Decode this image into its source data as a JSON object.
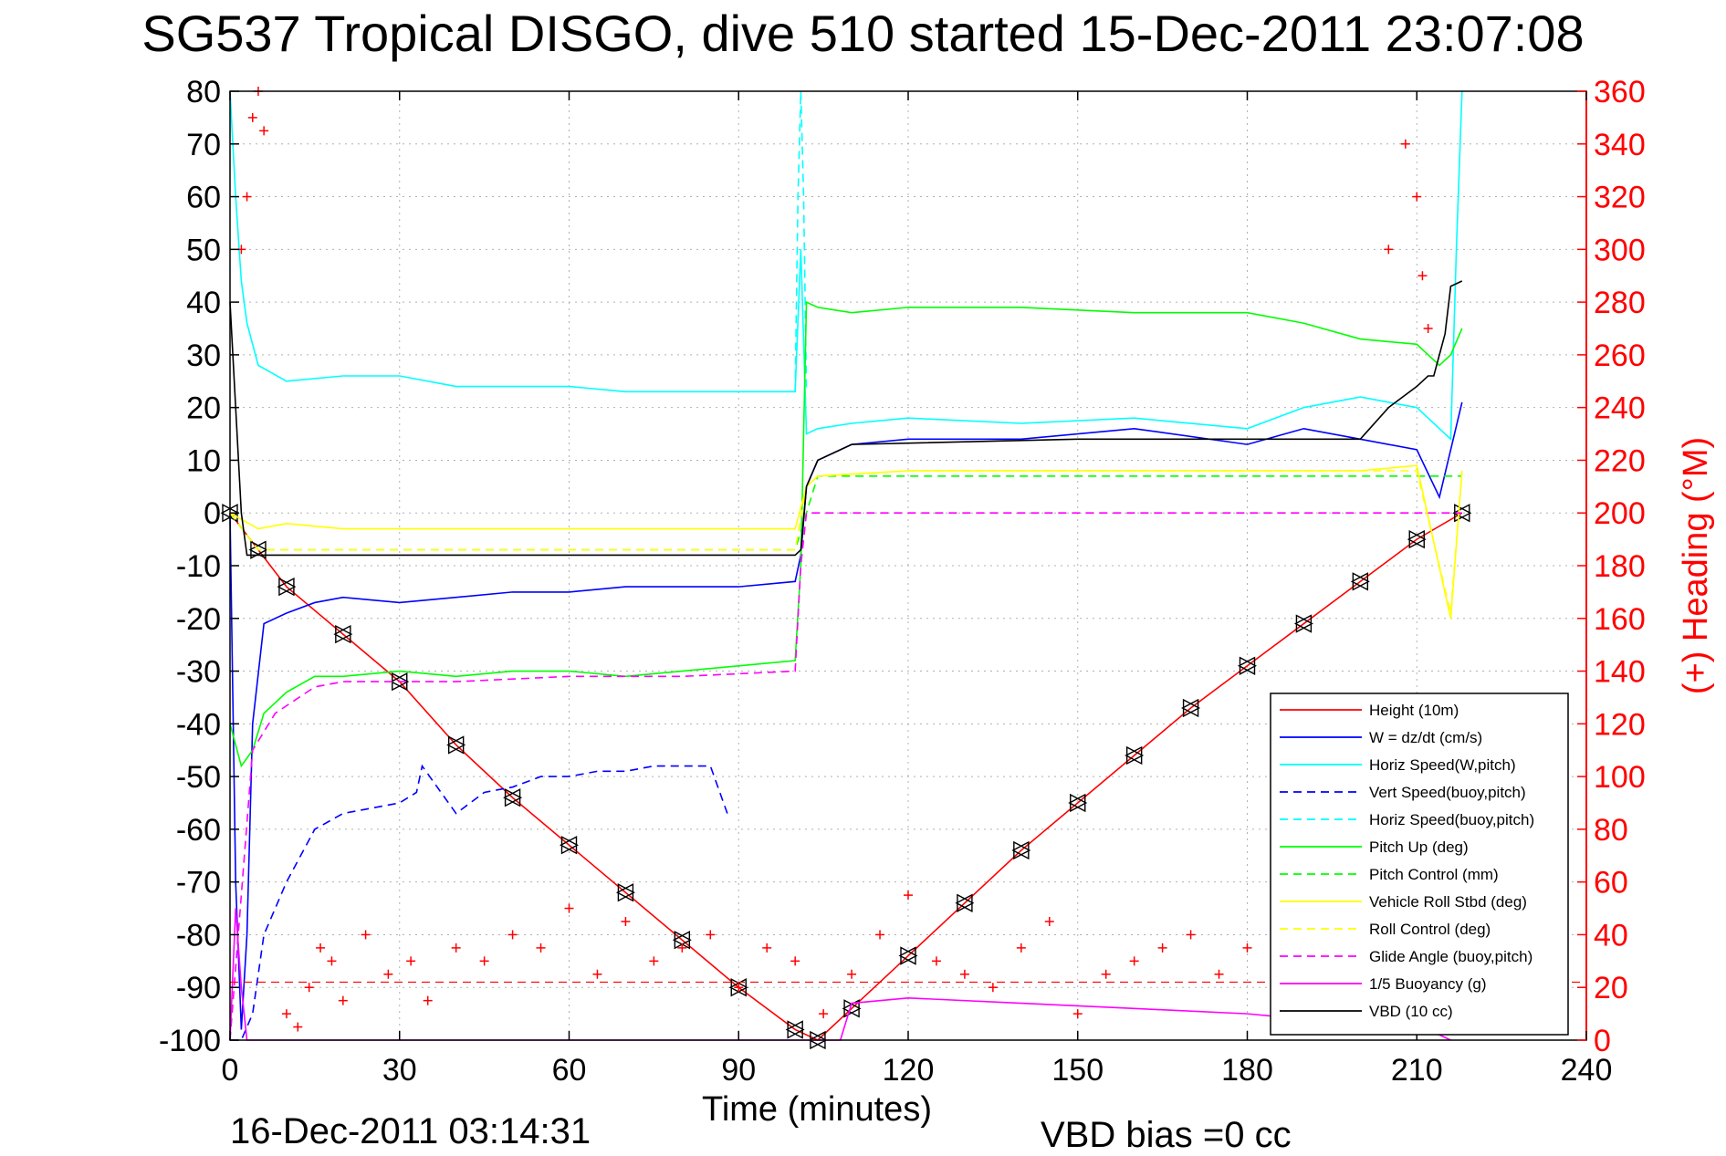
{
  "page": {
    "title": "SG537 Tropical DISGO, dive 510 started 15-Dec-2011 23:07:08",
    "footer_date": "16-Dec-2011 03:14:31",
    "footer_bias": "VBD bias =0 cc"
  },
  "chart_data": {
    "type": "line",
    "title": "SG537 Tropical DISGO, dive 510 started 15-Dec-2011 23:07:08",
    "xlabel": "Time (minutes)",
    "ylabel": "",
    "y2label": "(+) Heading (°M)",
    "xlim": [
      0,
      240
    ],
    "ylim": [
      -100,
      80
    ],
    "y2lim": [
      0,
      360
    ],
    "xticks": [
      0,
      30,
      60,
      90,
      120,
      150,
      180,
      210,
      240
    ],
    "yticks": [
      80,
      70,
      60,
      50,
      40,
      30,
      20,
      10,
      0,
      -10,
      -20,
      -30,
      -40,
      -50,
      -60,
      -70,
      -80,
      -90,
      -100
    ],
    "y2ticks": [
      360,
      340,
      320,
      300,
      280,
      260,
      240,
      220,
      200,
      180,
      160,
      140,
      120,
      100,
      80,
      60,
      40,
      20,
      0
    ],
    "grid": true,
    "legend_position": "bottom-right",
    "colors": {
      "red": "#ff0000",
      "blue": "#0000ff",
      "cyan": "#00ffff",
      "green": "#00ff00",
      "yellow": "#ffff00",
      "magenta": "#ff00ff",
      "black": "#000000",
      "heading": "#ff0000"
    },
    "series": [
      {
        "name": "Height (10m)",
        "color": "#ff0000",
        "style": "solid",
        "marker": "triangle",
        "x": [
          0,
          5,
          10,
          20,
          30,
          40,
          50,
          60,
          70,
          80,
          90,
          100,
          104,
          110,
          120,
          130,
          140,
          150,
          160,
          170,
          180,
          190,
          200,
          210,
          218
        ],
        "y": [
          0,
          -7,
          -14,
          -23,
          -32,
          -44,
          -54,
          -63,
          -72,
          -81,
          -90,
          -98,
          -100,
          -94,
          -84,
          -74,
          -64,
          -55,
          -46,
          -37,
          -29,
          -21,
          -13,
          -5,
          0
        ]
      },
      {
        "name": "W = dz/dt (cm/s)",
        "color": "#0000ff",
        "style": "solid",
        "x": [
          0,
          1,
          2,
          3,
          4,
          6,
          10,
          15,
          20,
          30,
          40,
          50,
          60,
          70,
          80,
          90,
          100,
          101,
          102,
          104,
          110,
          120,
          140,
          160,
          180,
          190,
          200,
          210,
          214,
          216,
          218
        ],
        "y": [
          0,
          -70,
          -98,
          -80,
          -40,
          -21,
          -19,
          -17,
          -16,
          -17,
          -16,
          -15,
          -15,
          -14,
          -14,
          -14,
          -13,
          -8,
          5,
          10,
          13,
          14,
          14,
          16,
          13,
          16,
          14,
          12,
          3,
          12,
          21
        ]
      },
      {
        "name": "Horiz Speed(W,pitch)",
        "color": "#00ffff",
        "style": "solid",
        "x": [
          0,
          1,
          2,
          3,
          5,
          10,
          20,
          30,
          40,
          50,
          60,
          70,
          80,
          90,
          100,
          101,
          102,
          104,
          110,
          120,
          140,
          160,
          180,
          190,
          200,
          210,
          216,
          217,
          218
        ],
        "y": [
          80,
          60,
          44,
          36,
          28,
          25,
          26,
          26,
          24,
          24,
          24,
          23,
          23,
          23,
          23,
          50,
          15,
          16,
          17,
          18,
          17,
          18,
          16,
          20,
          22,
          20,
          14,
          50,
          80
        ]
      },
      {
        "name": "Vert Speed(buoy,pitch)",
        "color": "#0000ff",
        "style": "dashed",
        "x": [
          0,
          2,
          4,
          6,
          10,
          15,
          20,
          30,
          33,
          34,
          40,
          45,
          50,
          55,
          60,
          65,
          70,
          75,
          80,
          85,
          88
        ],
        "y": [
          -100,
          -100,
          -95,
          -80,
          -70,
          -60,
          -57,
          -55,
          -53,
          -48,
          -57,
          -53,
          -52,
          -50,
          -50,
          -49,
          -49,
          -48,
          -48,
          -48,
          -57
        ]
      },
      {
        "name": "Horiz Speed(buoy,pitch)",
        "color": "#00ffff",
        "style": "dashed",
        "x": [
          100,
          100.5,
          101,
          101.5,
          102
        ],
        "y": [
          23,
          60,
          80,
          60,
          23
        ]
      },
      {
        "name": "Pitch Up (deg)",
        "color": "#00ff00",
        "style": "solid",
        "x": [
          0,
          2,
          4,
          6,
          10,
          15,
          20,
          30,
          40,
          50,
          60,
          70,
          80,
          90,
          100,
          101,
          102,
          104,
          110,
          120,
          140,
          160,
          180,
          190,
          200,
          210,
          214,
          216,
          218
        ],
        "y": [
          -40,
          -48,
          -45,
          -38,
          -34,
          -31,
          -31,
          -30,
          -31,
          -30,
          -30,
          -31,
          -30,
          -29,
          -28,
          -10,
          40,
          39,
          38,
          39,
          39,
          38,
          38,
          36,
          33,
          32,
          28,
          30,
          35
        ]
      },
      {
        "name": "Pitch Control (mm)",
        "color": "#00ff00",
        "style": "dashed",
        "x": [
          0,
          5,
          10,
          50,
          100,
          102,
          104,
          218
        ],
        "y": [
          0,
          -7,
          -7,
          -7,
          -7,
          0,
          7,
          7
        ]
      },
      {
        "name": "Vehicle Roll Stbd (deg)",
        "color": "#ffff00",
        "style": "solid",
        "x": [
          0,
          5,
          10,
          20,
          40,
          60,
          80,
          100,
          102,
          104,
          120,
          140,
          160,
          180,
          200,
          210,
          216,
          218
        ],
        "y": [
          0,
          -3,
          -2,
          -3,
          -3,
          -3,
          -3,
          -3,
          5,
          7,
          8,
          8,
          8,
          8,
          8,
          9,
          -20,
          8
        ]
      },
      {
        "name": "Roll Control (deg)",
        "color": "#ffff00",
        "style": "dashed",
        "x": [
          0,
          5,
          10,
          20,
          40,
          60,
          80,
          100,
          102,
          104,
          120,
          140,
          160,
          180,
          200,
          210,
          216,
          218
        ],
        "y": [
          0,
          -7,
          -7,
          -7,
          -7,
          -7,
          -7,
          -7,
          5,
          7,
          8,
          8,
          8,
          8,
          8,
          8,
          -19,
          8
        ]
      },
      {
        "name": "Glide Angle (buoy,pitch)",
        "color": "#ff00ff",
        "style": "dashed",
        "x": [
          0,
          4,
          8,
          15,
          20,
          40,
          60,
          80,
          100,
          101,
          102,
          218
        ],
        "y": [
          -100,
          -45,
          -38,
          -33,
          -32,
          -32,
          -31,
          -31,
          -30,
          -10,
          0,
          0
        ]
      },
      {
        "name": "1/5 Buoyancy (g)",
        "color": "#ff00ff",
        "style": "solid",
        "x": [
          0,
          1,
          2,
          3,
          108,
          110,
          120,
          140,
          160,
          180,
          200,
          210,
          214,
          216
        ],
        "y": [
          -100,
          -75,
          -90,
          -100,
          -100,
          -93,
          -92,
          -93,
          -94,
          -95,
          -97,
          -98,
          -99,
          -100
        ]
      },
      {
        "name": "VBD (10 cc)",
        "color": "#000000",
        "style": "solid",
        "x": [
          0,
          1,
          2,
          3,
          5,
          100,
          101,
          102,
          104,
          110,
          150,
          160,
          200,
          205,
          210,
          212,
          213,
          214,
          215,
          216,
          218
        ],
        "y": [
          40,
          20,
          0,
          -8,
          -8,
          -8,
          -7,
          5,
          10,
          13,
          14,
          14,
          14,
          20,
          24,
          26,
          26,
          30,
          34,
          43,
          44
        ]
      }
    ],
    "heading": {
      "name": "(+) Heading",
      "color": "#ff0000",
      "marker": "+",
      "axis": "right",
      "x": [
        2,
        3,
        4,
        5,
        6,
        10,
        12,
        14,
        16,
        18,
        20,
        24,
        28,
        32,
        35,
        40,
        45,
        50,
        55,
        60,
        65,
        70,
        75,
        80,
        85,
        90,
        95,
        100,
        105,
        110,
        115,
        120,
        125,
        130,
        135,
        140,
        145,
        150,
        155,
        160,
        165,
        170,
        175,
        180,
        185,
        190,
        200,
        205,
        208,
        210,
        211,
        212
      ],
      "y": [
        300,
        320,
        350,
        360,
        345,
        10,
        5,
        20,
        35,
        30,
        15,
        40,
        25,
        30,
        15,
        35,
        30,
        40,
        35,
        50,
        25,
        45,
        30,
        35,
        40,
        20,
        35,
        30,
        10,
        25,
        40,
        55,
        30,
        25,
        20,
        35,
        45,
        10,
        25,
        30,
        35,
        40,
        25,
        35,
        30,
        35,
        30,
        300,
        340,
        320,
        290,
        270
      ],
      "reference_line_y2": 22
    }
  }
}
